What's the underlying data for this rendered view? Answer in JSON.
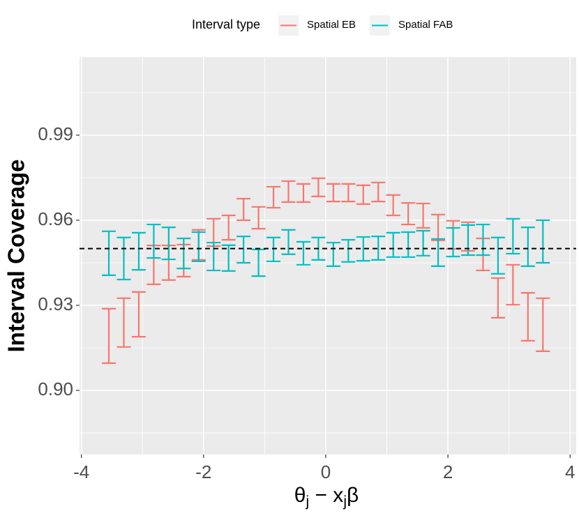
{
  "chart_data": {
    "type": "errorbar",
    "ylabel": "Interval Coverage",
    "xlabel": [
      "θ",
      "j",
      " − x",
      "j",
      "β"
    ],
    "legend_title": "Interval type",
    "legend_position": "top",
    "xlim": [
      -4.03,
      4.1
    ],
    "ylim": [
      0.8774,
      1.0175
    ],
    "xticks": [
      -4,
      -2,
      0,
      2,
      4
    ],
    "yticks": [
      {
        "value": 0.9,
        "label": "0.90"
      },
      {
        "value": 0.93,
        "label": "0.93"
      },
      {
        "value": 0.96,
        "label": "0.96"
      },
      {
        "value": 0.99,
        "label": "0.99"
      }
    ],
    "grid": true,
    "hline": 0.95,
    "x": [
      -3.55,
      -3.305,
      -3.06,
      -2.815,
      -2.57,
      -2.325,
      -2.08,
      -1.835,
      -1.59,
      -1.345,
      -1.1,
      -0.855,
      -0.61,
      -0.365,
      -0.12,
      0.125,
      0.37,
      0.615,
      0.86,
      1.105,
      1.35,
      1.595,
      1.84,
      2.085,
      2.33,
      2.575,
      2.82,
      3.065,
      3.31,
      3.555
    ],
    "series": [
      {
        "name": "Spatial EB",
        "color": "#F8766D",
        "upper": [
          0.9288,
          0.9325,
          0.9347,
          0.9511,
          0.9511,
          0.9514,
          0.9566,
          0.9605,
          0.9617,
          0.9676,
          0.9647,
          0.9718,
          0.9738,
          0.9728,
          0.9748,
          0.9728,
          0.9728,
          0.9723,
          0.9733,
          0.9689,
          0.9661,
          0.9659,
          0.962,
          0.9598,
          0.9593,
          0.9536,
          0.9396,
          0.9443,
          0.9344,
          0.9325
        ],
        "lower": [
          0.9096,
          0.9153,
          0.9189,
          0.9374,
          0.9389,
          0.9401,
          0.946,
          0.9509,
          0.9531,
          0.96,
          0.957,
          0.9644,
          0.9664,
          0.9664,
          0.9684,
          0.9666,
          0.9666,
          0.9657,
          0.9666,
          0.9617,
          0.9585,
          0.9573,
          0.9529,
          0.9499,
          0.9492,
          0.9423,
          0.9256,
          0.9302,
          0.9175,
          0.9138
        ]
      },
      {
        "name": "Spatial FAB",
        "color": "#00BFC4",
        "upper": [
          0.9561,
          0.9539,
          0.9556,
          0.9585,
          0.9575,
          0.9536,
          0.9558,
          0.9521,
          0.9512,
          0.9543,
          0.9497,
          0.9539,
          0.9566,
          0.9524,
          0.9539,
          0.9521,
          0.9531,
          0.9541,
          0.9543,
          0.9556,
          0.9558,
          0.9563,
          0.9534,
          0.9573,
          0.9583,
          0.9585,
          0.9539,
          0.9605,
          0.9575,
          0.96
        ],
        "lower": [
          0.9406,
          0.9391,
          0.9425,
          0.9467,
          0.9462,
          0.943,
          0.9455,
          0.9423,
          0.9421,
          0.945,
          0.9403,
          0.9455,
          0.948,
          0.9443,
          0.946,
          0.9438,
          0.9453,
          0.9457,
          0.946,
          0.947,
          0.947,
          0.9475,
          0.9438,
          0.9472,
          0.9477,
          0.9477,
          0.9411,
          0.9482,
          0.9438,
          0.945
        ]
      }
    ]
  }
}
